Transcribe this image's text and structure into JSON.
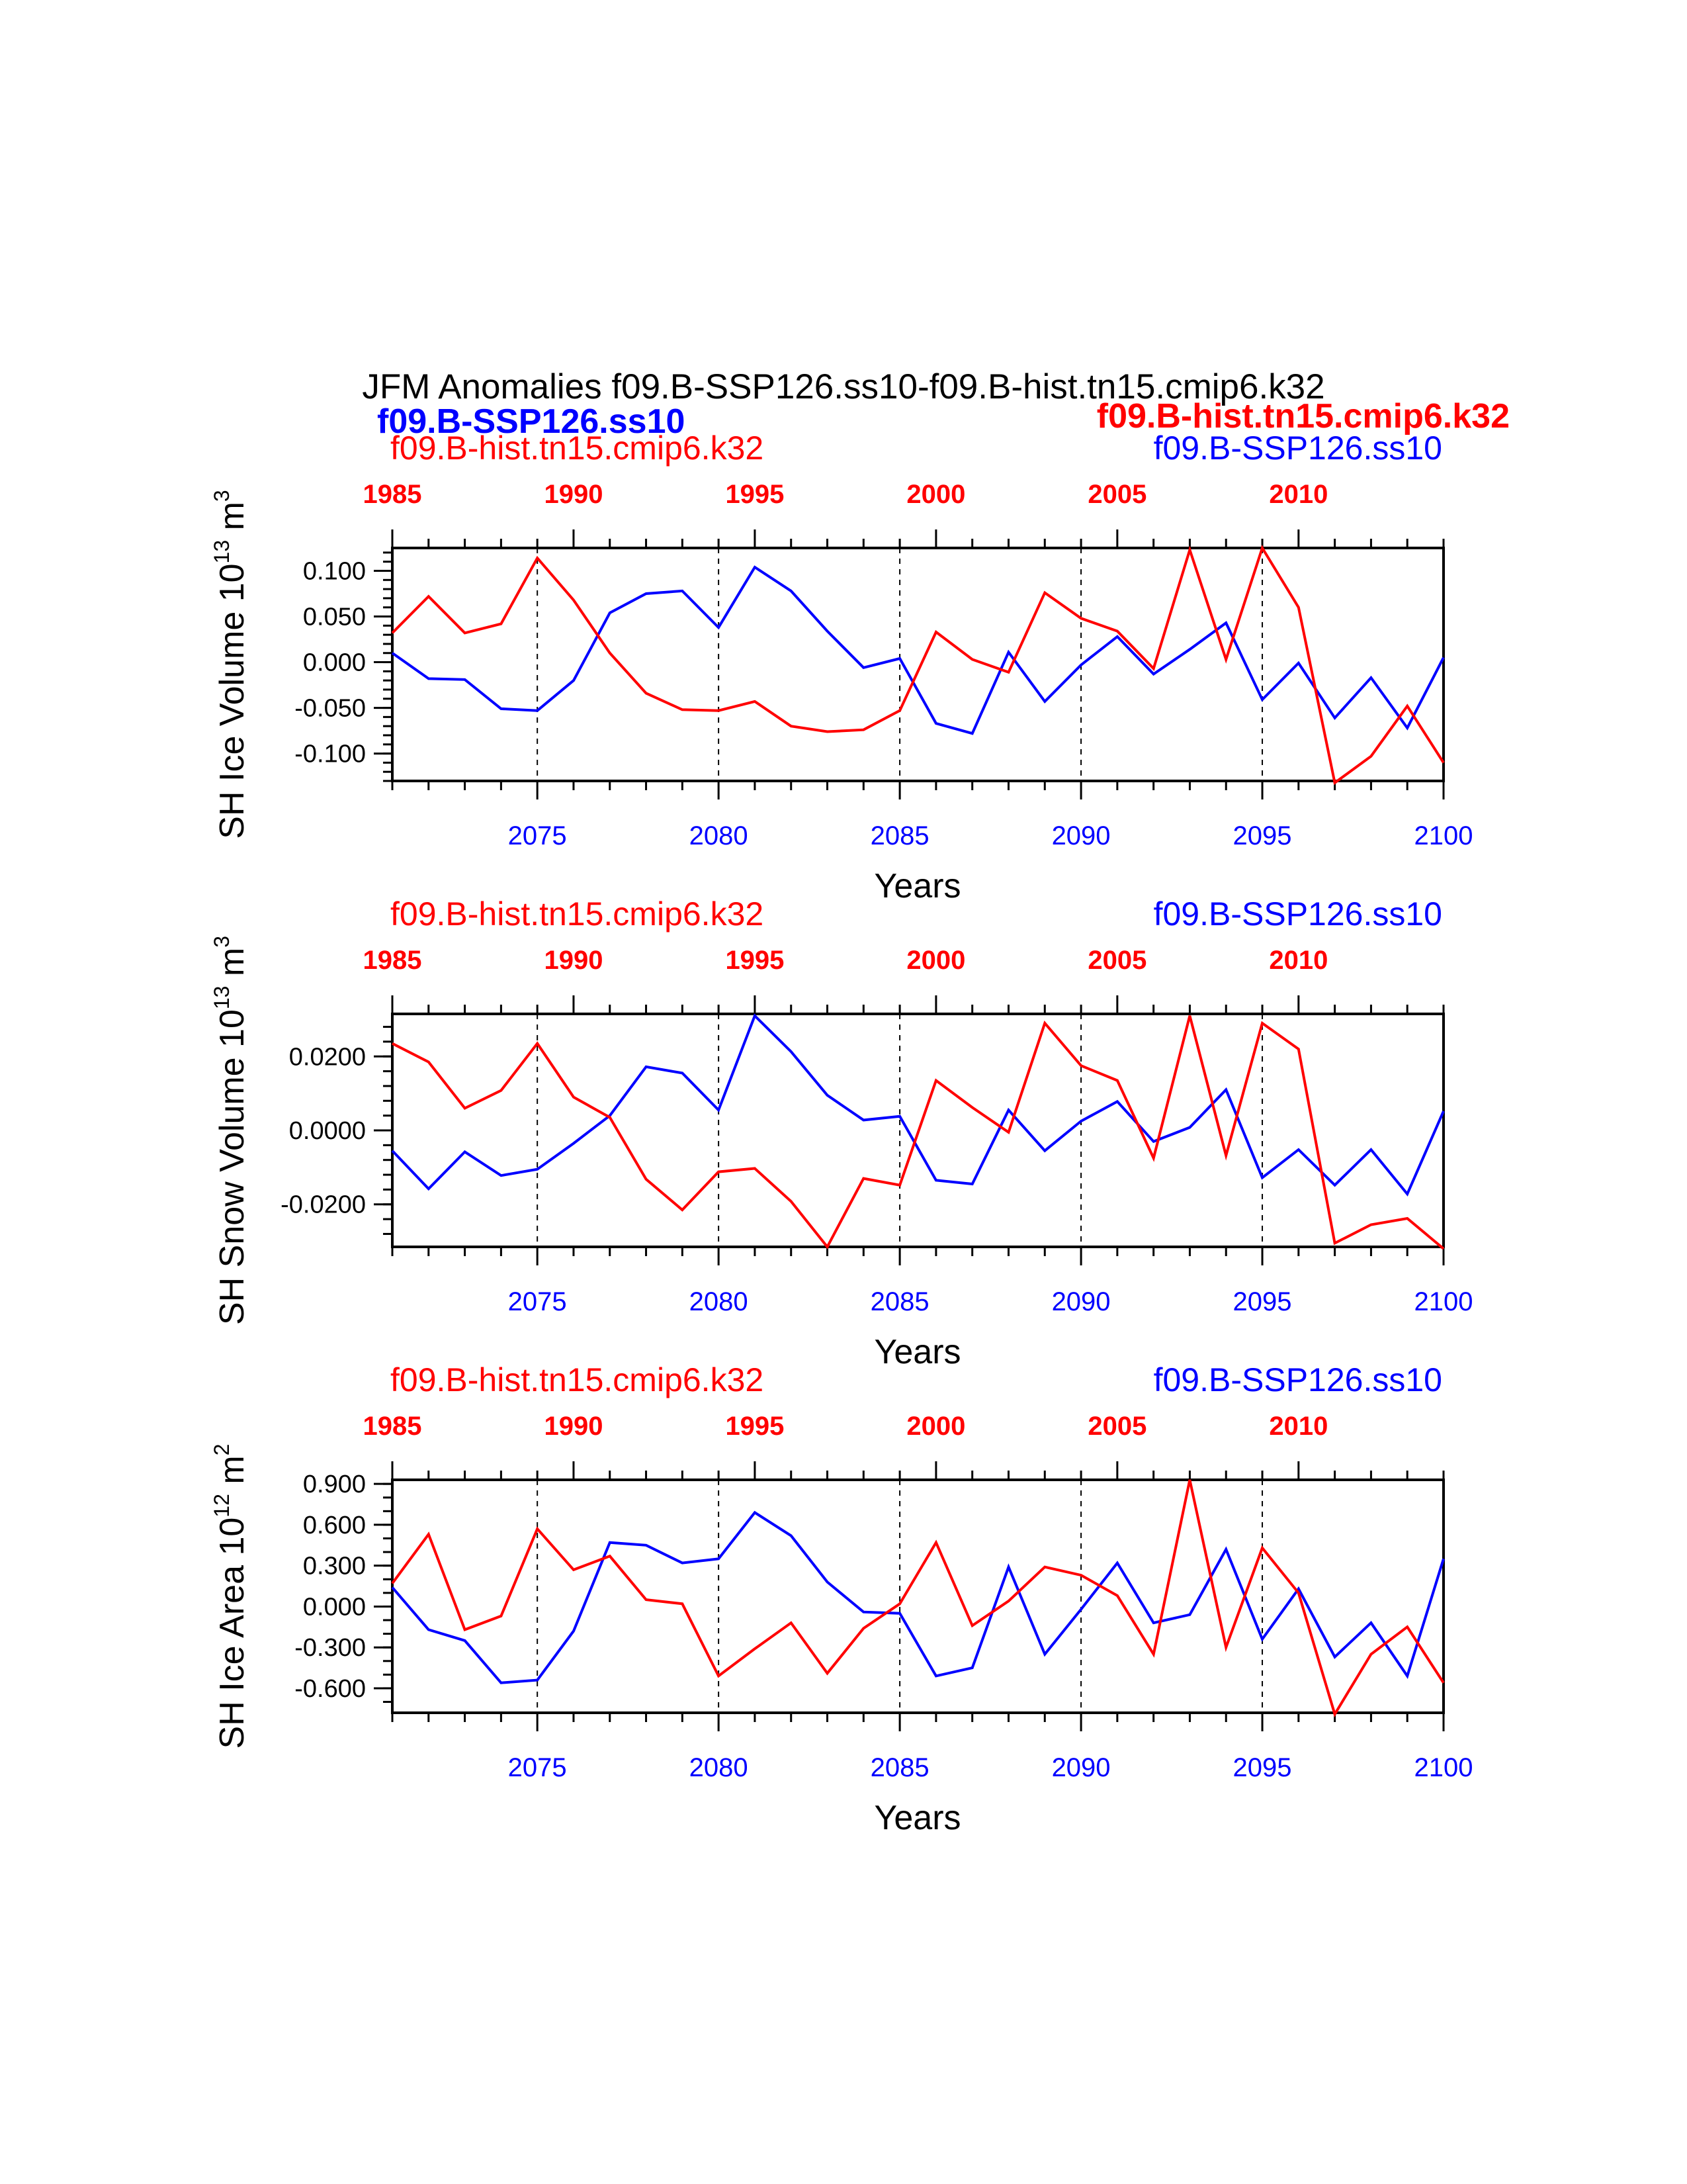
{
  "title": "JFM Anomalies f09.B-SSP126.ss10-f09.B-hist.tn15.cmip6.k32",
  "header_legend": {
    "left_bold": "f09.B-SSP126.ss10",
    "right_bold": "f09.B-hist.tn15.cmip6.k32"
  },
  "colors": {
    "case1": "#0000ff",
    "case2": "#ff0000",
    "axis": "#000000"
  },
  "chart_data": [
    {
      "type": "line",
      "ylabel_main": "SH Ice Volume 10",
      "ylabel_exp": "13",
      "ylabel_unit": " m",
      "ylabel_unit_exp": "3",
      "xlabel": "Years",
      "left_label": "f09.B-hist.tn15.cmip6.k32",
      "right_label": "f09.B-SSP126.ss10",
      "x_bottom_range": [
        2071,
        2100
      ],
      "x_top_range": [
        1985,
        2014
      ],
      "bottom_ticks": [
        "2075",
        "2080",
        "2085",
        "2090",
        "2095",
        "2100"
      ],
      "top_ticks": [
        "1985",
        "1990",
        "1995",
        "2000",
        "2005",
        "2010"
      ],
      "ylim": [
        -0.13,
        0.125
      ],
      "yticks": [
        0.1,
        0.05,
        0.0,
        -0.05,
        -0.1
      ],
      "ytick_labels": [
        "0.100",
        "0.050",
        "0.000",
        "-0.050",
        "-0.100"
      ],
      "yminor_step": 0.01,
      "series": [
        {
          "name": "f09.B-SSP126.ss10",
          "color": "#0000ff",
          "values": [
            0.01,
            -0.018,
            -0.019,
            -0.051,
            -0.053,
            -0.02,
            0.054,
            0.075,
            0.078,
            0.038,
            0.104,
            0.078,
            0.034,
            -0.006,
            0.004,
            -0.067,
            -0.078,
            0.011,
            -0.043,
            -0.003,
            0.028,
            -0.013,
            0.014,
            0.043,
            -0.041,
            -0.001,
            -0.061,
            -0.017,
            -0.072,
            0.005
          ]
        },
        {
          "name": "f09.B-hist.tn15.cmip6.k32",
          "color": "#ff0000",
          "values": [
            0.032,
            0.072,
            0.032,
            0.042,
            0.114,
            0.068,
            0.01,
            -0.034,
            -0.052,
            -0.053,
            -0.043,
            -0.07,
            -0.076,
            -0.074,
            -0.053,
            0.033,
            0.003,
            -0.011,
            0.076,
            0.048,
            0.034,
            -0.007,
            0.123,
            0.003,
            0.125,
            0.06,
            -0.132,
            -0.103,
            -0.048,
            -0.11
          ]
        }
      ]
    },
    {
      "type": "line",
      "ylabel_main": "SH Snow Volume 10",
      "ylabel_exp": "13",
      "ylabel_unit": " m",
      "ylabel_unit_exp": "3",
      "xlabel": "Years",
      "left_label": "f09.B-hist.tn15.cmip6.k32",
      "right_label": "f09.B-SSP126.ss10",
      "x_bottom_range": [
        2071,
        2100
      ],
      "x_top_range": [
        1985,
        2014
      ],
      "bottom_ticks": [
        "2075",
        "2080",
        "2085",
        "2090",
        "2095",
        "2100"
      ],
      "top_ticks": [
        "1985",
        "1990",
        "1995",
        "2000",
        "2005",
        "2010"
      ],
      "ylim": [
        -0.0315,
        0.0315
      ],
      "yticks": [
        0.02,
        0.0,
        -0.02
      ],
      "ytick_labels": [
        "0.0200",
        "0.0000",
        "-0.0200"
      ],
      "yminor_step": 0.004,
      "series": [
        {
          "name": "f09.B-SSP126.ss10",
          "color": "#0000ff",
          "values": [
            -0.0055,
            -0.0158,
            -0.0058,
            -0.0122,
            -0.0105,
            -0.0035,
            0.004,
            0.0172,
            0.0155,
            0.0055,
            0.031,
            0.0213,
            0.0095,
            0.0028,
            0.0038,
            -0.0135,
            -0.0145,
            0.0055,
            -0.0055,
            0.0025,
            0.0078,
            -0.003,
            0.0008,
            0.011,
            -0.0128,
            -0.0052,
            -0.0148,
            -0.0052,
            -0.0172,
            0.0052
          ]
        },
        {
          "name": "f09.B-hist.tn15.cmip6.k32",
          "color": "#ff0000",
          "values": [
            0.0235,
            0.0185,
            0.006,
            0.0108,
            0.0235,
            0.009,
            0.0035,
            -0.0132,
            -0.0215,
            -0.0112,
            -0.0103,
            -0.0192,
            -0.0315,
            -0.013,
            -0.0148,
            0.0135,
            0.0062,
            -0.0005,
            0.029,
            0.0175,
            0.0135,
            -0.0075,
            0.031,
            -0.0068,
            0.029,
            0.022,
            -0.0305,
            -0.0255,
            -0.0238,
            -0.032
          ]
        }
      ]
    },
    {
      "type": "line",
      "ylabel_main": "SH Ice Area 10",
      "ylabel_exp": "12",
      "ylabel_unit": " m",
      "ylabel_unit_exp": "2",
      "xlabel": "Years",
      "left_label": "f09.B-hist.tn15.cmip6.k32",
      "right_label": "f09.B-SSP126.ss10",
      "x_bottom_range": [
        2071,
        2100
      ],
      "x_top_range": [
        1985,
        2014
      ],
      "bottom_ticks": [
        "2075",
        "2080",
        "2085",
        "2090",
        "2095",
        "2100"
      ],
      "top_ticks": [
        "1985",
        "1990",
        "1995",
        "2000",
        "2005",
        "2010"
      ],
      "ylim": [
        -0.78,
        0.93
      ],
      "yticks": [
        0.9,
        0.6,
        0.3,
        0.0,
        -0.3,
        -0.6
      ],
      "ytick_labels": [
        "0.900",
        "0.600",
        "0.300",
        "0.000",
        "-0.300",
        "-0.600"
      ],
      "yminor_step": 0.1,
      "series": [
        {
          "name": "f09.B-SSP126.ss10",
          "color": "#0000ff",
          "values": [
            0.14,
            -0.17,
            -0.25,
            -0.56,
            -0.54,
            -0.18,
            0.47,
            0.45,
            0.32,
            0.35,
            0.69,
            0.52,
            0.18,
            -0.04,
            -0.05,
            -0.51,
            -0.45,
            0.29,
            -0.35,
            -0.02,
            0.32,
            -0.12,
            -0.06,
            0.42,
            -0.24,
            0.13,
            -0.37,
            -0.12,
            -0.51,
            0.35
          ]
        },
        {
          "name": "f09.B-hist.tn15.cmip6.k32",
          "color": "#ff0000",
          "values": [
            0.17,
            0.53,
            -0.17,
            -0.07,
            0.57,
            0.27,
            0.37,
            0.05,
            0.02,
            -0.51,
            -0.31,
            -0.12,
            -0.49,
            -0.16,
            0.02,
            0.47,
            -0.14,
            0.04,
            0.29,
            0.23,
            0.08,
            -0.35,
            0.93,
            -0.3,
            0.43,
            0.1,
            -0.79,
            -0.35,
            -0.15,
            -0.56
          ]
        }
      ]
    }
  ]
}
